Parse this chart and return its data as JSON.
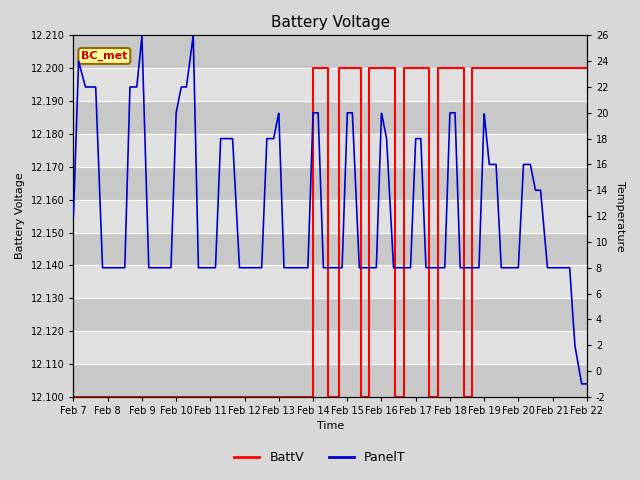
{
  "title": "Battery Voltage",
  "ylabel_left": "Battery Voltage",
  "ylabel_right": "Temperature",
  "xlabel": "Time",
  "annotation": "BC_met",
  "legend_entries": [
    "BattV",
    "PanelT"
  ],
  "batt_color": "#ff0000",
  "panel_color": "#0000cc",
  "fig_facecolor": "#d8d8d8",
  "ylim_left": [
    12.1,
    12.21
  ],
  "ylim_right": [
    -2,
    26
  ],
  "yticks_left": [
    12.1,
    12.11,
    12.12,
    12.13,
    12.14,
    12.15,
    12.16,
    12.17,
    12.18,
    12.19,
    12.2,
    12.21
  ],
  "yticks_right": [
    -2,
    0,
    2,
    4,
    6,
    8,
    10,
    12,
    14,
    16,
    18,
    20,
    22,
    24,
    26
  ],
  "xtick_labels": [
    "Feb 7",
    "Feb 8",
    "Feb 9",
    "Feb 10",
    "Feb 11",
    "Feb 12",
    "Feb 13",
    "Feb 14",
    "Feb 15",
    "Feb 16",
    "Feb 17",
    "Feb 18",
    "Feb 19",
    "Feb 20",
    "Feb 21",
    "Feb 22"
  ],
  "xlim": [
    0,
    15
  ],
  "band_colors": [
    "#c8c8c8",
    "#e0e0e0"
  ],
  "batt_x": [
    0,
    7,
    7,
    7.45,
    7.45,
    7.75,
    7.75,
    8.4,
    8.4,
    8.65,
    8.65,
    9.4,
    9.4,
    9.65,
    9.65,
    10.4,
    10.4,
    10.65,
    10.65,
    11.4,
    11.4,
    11.65,
    11.65,
    15
  ],
  "batt_y": [
    12.1,
    12.1,
    12.2,
    12.2,
    12.1,
    12.1,
    12.2,
    12.2,
    12.1,
    12.1,
    12.2,
    12.2,
    12.1,
    12.1,
    12.2,
    12.2,
    12.1,
    12.1,
    12.2,
    12.2,
    12.1,
    12.1,
    12.2,
    12.2
  ],
  "panel_t_x": [
    0,
    0.15,
    0.35,
    0.5,
    0.65,
    0.85,
    1.0,
    1.15,
    1.35,
    1.5,
    1.65,
    1.85,
    2.0,
    2.2,
    2.4,
    2.5,
    2.65,
    2.85,
    3.0,
    3.15,
    3.3,
    3.5,
    3.65,
    3.75,
    3.9,
    4.0,
    4.15,
    4.3,
    4.5,
    4.65,
    4.85,
    5.0,
    5.15,
    5.3,
    5.5,
    5.65,
    5.85,
    6.0,
    6.15,
    6.35,
    6.5,
    6.65,
    6.85,
    7.0,
    7.15,
    7.3,
    7.5,
    7.65,
    7.85,
    8.0,
    8.15,
    8.35,
    8.5,
    8.65,
    8.85,
    9.0,
    9.15,
    9.35,
    9.5,
    9.65,
    9.85,
    10.0,
    10.15,
    10.3,
    10.5,
    10.65,
    10.85,
    11.0,
    11.15,
    11.3,
    11.5,
    11.65,
    11.85,
    12.0,
    12.15,
    12.35,
    12.5,
    12.65,
    12.85,
    13.0,
    13.15,
    13.35,
    13.5,
    13.65,
    13.85,
    14.0,
    14.15,
    14.35,
    14.5,
    14.65,
    14.85,
    15.0
  ],
  "panel_t_y": [
    12,
    24,
    22,
    22,
    22,
    8,
    8,
    8,
    8,
    8,
    22,
    22,
    26,
    8,
    8,
    8,
    8,
    8,
    20,
    22,
    22,
    26,
    8,
    8,
    8,
    8,
    8,
    18,
    18,
    18,
    8,
    8,
    8,
    8,
    8,
    18,
    18,
    20,
    8,
    8,
    8,
    8,
    8,
    20,
    20,
    8,
    8,
    8,
    8,
    20,
    20,
    8,
    8,
    8,
    8,
    20,
    18,
    8,
    8,
    8,
    8,
    18,
    18,
    8,
    8,
    8,
    8,
    20,
    20,
    8,
    8,
    8,
    8,
    20,
    16,
    16,
    8,
    8,
    8,
    8,
    16,
    16,
    14,
    14,
    8,
    8,
    8,
    8,
    8,
    2,
    -1,
    -1
  ]
}
